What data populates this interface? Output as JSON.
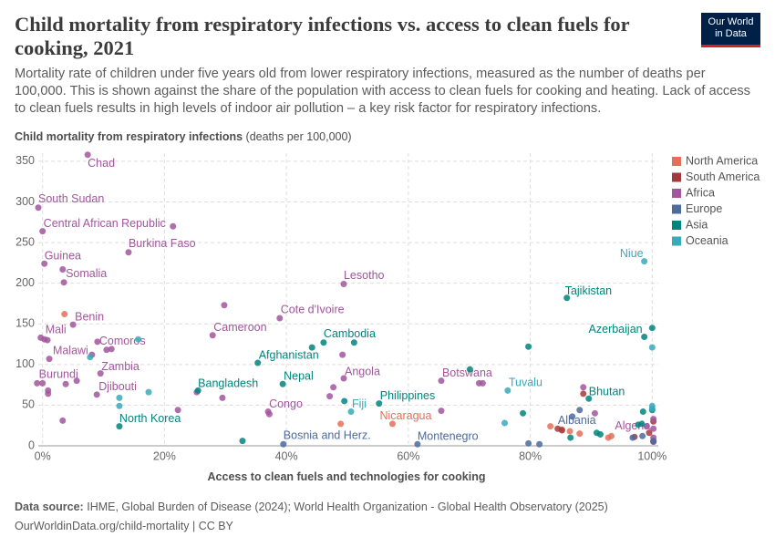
{
  "chart_data": {
    "type": "scatter",
    "title": "Child mortality from respiratory infections vs. access to clean fuels for cooking, 2021",
    "subtitle": "Mortality rate of children under five years old from lower respiratory infections, measured as the number of deaths per 100,000. This is shown against the share of the population with access to clean fuels for cooking and heating. Lack of access to clean fuels results in high levels of indoor air pollution – a key risk factor for respiratory infections.",
    "logo": [
      "Our World",
      "in Data"
    ],
    "y_label": "Child mortality from respiratory infections",
    "y_unit": "(deaths per 100,000)",
    "x_label": "Access to clean fuels and technologies for cooking",
    "source_label": "Data source:",
    "source": "IHME, Global Burden of Disease (2024); World Health Organization - Global Health Observatory (2025)",
    "url": "OurWorldinData.org/child-mortality | CC BY",
    "xlim": [
      -1,
      101
    ],
    "ylim": [
      0,
      360
    ],
    "xticks": [
      {
        "value": 0,
        "label": "0%"
      },
      {
        "value": 20,
        "label": "20%"
      },
      {
        "value": 40,
        "label": "40%"
      },
      {
        "value": 60,
        "label": "60%"
      },
      {
        "value": 80,
        "label": "80%"
      },
      {
        "value": 100,
        "label": "100%"
      }
    ],
    "yticks": [
      0,
      50,
      100,
      150,
      200,
      250,
      300,
      350
    ],
    "grid": true,
    "legend": "right",
    "series": [
      {
        "name": "North America",
        "color": "#e56e5a",
        "x": [
          3.6,
          57.4,
          48.9,
          83.3,
          85.2,
          86.5,
          88.1,
          92.8,
          93.3
        ],
        "values": [
          162,
          27,
          27,
          24,
          20,
          18,
          15,
          10,
          12
        ],
        "point_labels": [
          null,
          "Nicaragua",
          null,
          null,
          null,
          null,
          null,
          null,
          null
        ]
      },
      {
        "name": "South America",
        "color": "#a2393b",
        "x": [
          88.7,
          84.5,
          85.2,
          97.1,
          100.2,
          100.2,
          99.5
        ],
        "values": [
          64,
          21,
          19,
          11,
          30,
          5,
          16
        ],
        "point_labels": [
          null,
          null,
          null,
          null,
          null,
          null,
          null
        ]
      },
      {
        "name": "Africa",
        "color": "#a2559c",
        "x": [
          7.4,
          -0.7,
          0,
          21.4,
          14.1,
          0.3,
          3.5,
          3.3,
          49.4,
          29.8,
          38.9,
          27.9,
          5,
          0.3,
          -0.3,
          0.8,
          9,
          8.1,
          10.5,
          11.3,
          1.1,
          9.5,
          -0.9,
          0,
          0.9,
          0.9,
          8.9,
          3.8,
          5.6,
          3.3,
          49.4,
          47.7,
          47.1,
          49.2,
          37,
          37.2,
          25.3,
          22.2,
          29.5,
          65.4,
          65.4,
          71.6,
          72.2,
          88.7,
          90.6,
          99.1,
          100.2,
          100.2,
          100.2,
          100.2
        ],
        "values": [
          358,
          293,
          264,
          270,
          238,
          224,
          201,
          217,
          199,
          173,
          157,
          136,
          149,
          131,
          133,
          130,
          128,
          112,
          118,
          119,
          107,
          89,
          77,
          77,
          68,
          64,
          63,
          76,
          80,
          31,
          83,
          72,
          61,
          112,
          42,
          39,
          66,
          44,
          59,
          80,
          43,
          77,
          77,
          72,
          40,
          24,
          33,
          21,
          10,
          5
        ],
        "point_labels": [
          "Chad",
          "South Sudan",
          "Central African Republic",
          null,
          "Burkina Faso",
          "Guinea",
          "Somalia",
          null,
          "Lesotho",
          null,
          "Cote d'Ivoire",
          "Cameroon",
          "Benin",
          "Mali",
          null,
          null,
          "Comoros",
          "Malawi",
          null,
          null,
          null,
          "Zambia",
          "Burundi",
          null,
          null,
          null,
          "Djibouti",
          null,
          null,
          null,
          "Angola",
          null,
          null,
          null,
          "Congo",
          null,
          null,
          null,
          null,
          "Botswana",
          null,
          null,
          null,
          null,
          null,
          "Algeria",
          null,
          null,
          null,
          null
        ]
      },
      {
        "name": "Europe",
        "color": "#4c6a9c",
        "x": [
          39.5,
          61.5,
          86.9,
          79.7,
          81.5,
          88.1,
          96.8,
          98.4,
          100.2
        ],
        "values": [
          2,
          2,
          36,
          3,
          2,
          44,
          10,
          12,
          6
        ],
        "point_labels": [
          "Bosnia and Herz.",
          "Montenegro",
          "Albania",
          null,
          null,
          null,
          null,
          null,
          null
        ]
      },
      {
        "name": "Asia",
        "color": "#00847e",
        "x": [
          12.6,
          32.8,
          25.5,
          35.3,
          39.4,
          46.1,
          44.2,
          51.1,
          55.2,
          49.5,
          70.1,
          79.7,
          78.8,
          86,
          98.7,
          100,
          89.6,
          97.7,
          98.3,
          90.9,
          91.5,
          86.6,
          100,
          98.5
        ],
        "values": [
          24,
          6,
          68,
          102,
          76,
          127,
          121,
          127,
          52,
          55,
          94,
          122,
          40,
          182,
          134,
          145,
          58,
          26,
          27,
          16,
          14,
          10,
          44,
          42
        ],
        "point_labels": [
          "North Korea",
          null,
          "Bangladesh",
          "Afghanistan",
          "Nepal",
          "Cambodia",
          null,
          null,
          "Philippines",
          null,
          null,
          null,
          null,
          "Tajikistan",
          "Azerbaijan",
          null,
          "Bhutan",
          null,
          null,
          null,
          null,
          null,
          null,
          null
        ]
      },
      {
        "name": "Oceania",
        "color": "#38aaba",
        "x": [
          98.7,
          100,
          76.3,
          50.6,
          75.8,
          12.6,
          12.6,
          17.4,
          7.8,
          15.7,
          100,
          100
        ],
        "values": [
          227,
          121,
          68,
          42,
          28,
          59,
          49,
          66,
          109,
          131,
          49,
          46
        ],
        "point_labels": [
          "Niue",
          null,
          "Tuvalu",
          "Fiji",
          null,
          null,
          null,
          null,
          null,
          null,
          null,
          null
        ]
      }
    ]
  }
}
